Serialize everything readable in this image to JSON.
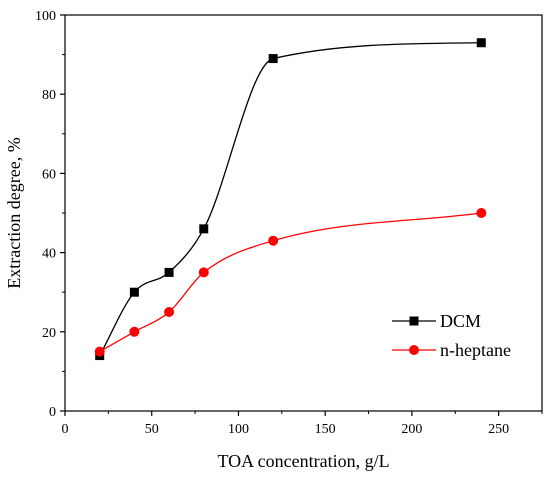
{
  "chart_data": {
    "type": "scatter",
    "title": "",
    "xlabel": "TOA concentration, g/L",
    "ylabel": "Extraction degree, %",
    "xlim": [
      0,
      275
    ],
    "ylim": [
      0,
      100
    ],
    "xticks": [
      0,
      50,
      100,
      150,
      200,
      250
    ],
    "yticks": [
      0,
      20,
      40,
      60,
      80,
      100
    ],
    "grid": false,
    "legend_position": "right",
    "series": [
      {
        "name": "DCM",
        "marker": "square",
        "color": "#000000",
        "x": [
          20,
          40,
          60,
          80,
          120,
          240
        ],
        "y": [
          14,
          30,
          35,
          46,
          89,
          93
        ]
      },
      {
        "name": "n-heptane",
        "marker": "circle",
        "color": "#ff0000",
        "x": [
          20,
          40,
          60,
          80,
          120,
          240
        ],
        "y": [
          15,
          20,
          25,
          35,
          43,
          50
        ]
      }
    ]
  }
}
